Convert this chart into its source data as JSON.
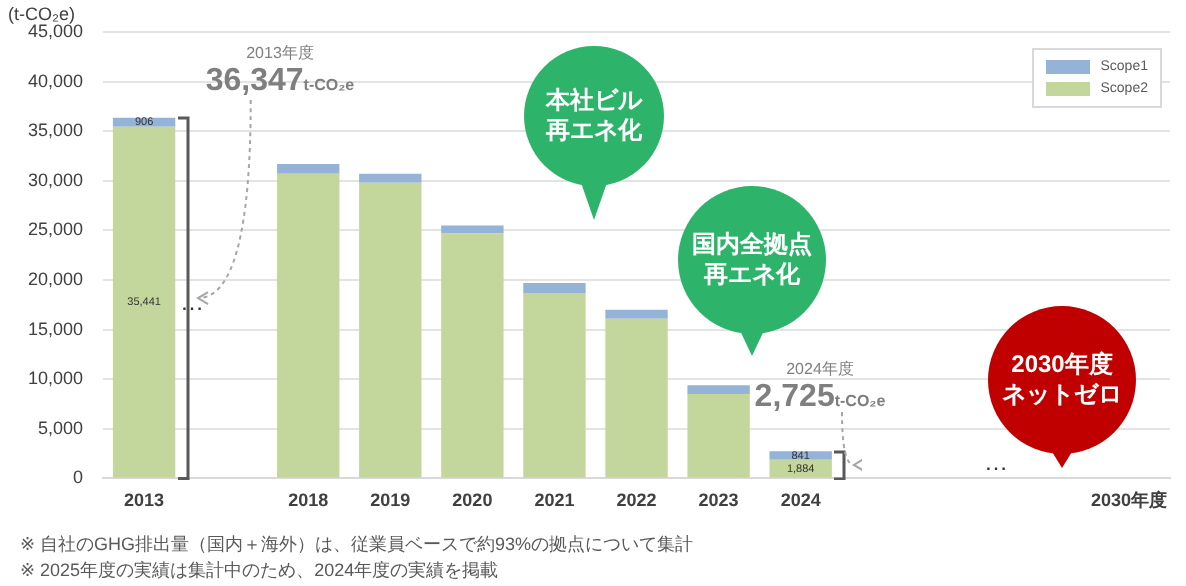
{
  "chart_data": {
    "type": "bar",
    "stacked": true,
    "ylabel": "(t-CO₂e)",
    "categories": [
      "2013",
      null,
      "2018",
      "2019",
      "2020",
      "2021",
      "2022",
      "2023",
      "2024",
      null,
      null,
      null,
      "2030年度"
    ],
    "series": [
      {
        "name": "Scope2",
        "color": "#c3d69b",
        "values": [
          35441,
          null,
          30700,
          29800,
          24700,
          18700,
          16100,
          8500,
          1884,
          null,
          null,
          null,
          null
        ],
        "value_labels": [
          "35,441",
          null,
          null,
          null,
          null,
          null,
          null,
          null,
          "1,884",
          null,
          null,
          null,
          null
        ]
      },
      {
        "name": "Scope1",
        "color": "#95b3d7",
        "values": [
          906,
          null,
          1000,
          900,
          800,
          1000,
          900,
          900,
          841,
          null,
          null,
          null,
          null
        ],
        "value_labels": [
          "906",
          null,
          null,
          null,
          null,
          null,
          null,
          null,
          "841",
          null,
          null,
          null,
          null
        ]
      }
    ],
    "ylim": [
      0,
      45000
    ],
    "yticks": [
      0,
      {
        "value": 5000,
        "label": "5,000"
      },
      {
        "value": 10000,
        "label": "10,000"
      },
      {
        "value": 15000,
        "label": "15,000"
      },
      {
        "value": 20000,
        "label": "20,000"
      },
      {
        "value": 25000,
        "label": "25,000"
      },
      {
        "value": 30000,
        "label": "30,000"
      },
      {
        "value": 35000,
        "label": "35,000"
      },
      {
        "value": 40000,
        "label": "40,000"
      },
      {
        "value": 45000,
        "label": "45,000"
      }
    ],
    "grid": "y",
    "legend": "top right",
    "annotations": [
      {
        "text": "2013年度 36,347t-CO₂e",
        "x": "2013",
        "y": 36347
      },
      "本社ビル再エネ化",
      "国内全拠点再エネ化",
      {
        "text": "2024年度 2,725t-CO₂e",
        "x": "2024",
        "y": 2725
      },
      "2030年度ネットゼロ",
      "…",
      "…",
      "※ 自社のGHG排出量（国内＋海外）は、従業員ベースで約93%の拠点について集計",
      "※ 2025年度の実績は集計中のため、2024年度の実績を掲載"
    ]
  }
}
